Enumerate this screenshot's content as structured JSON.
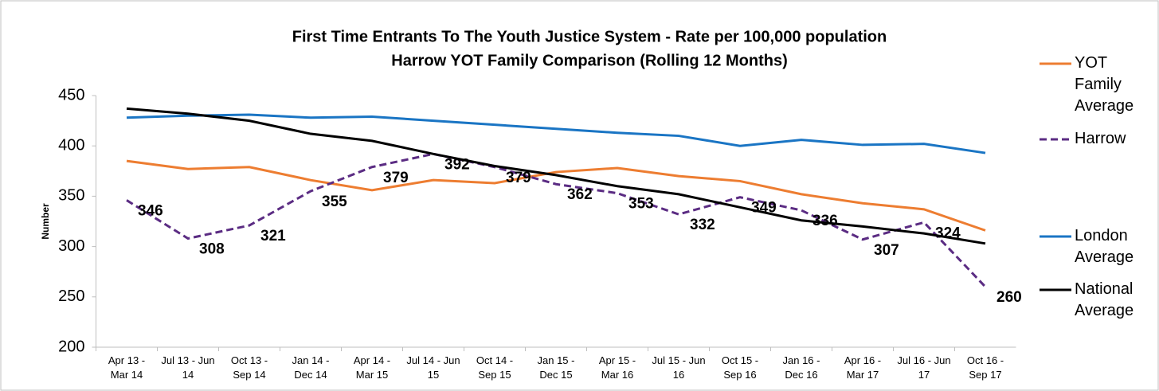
{
  "chart_data": {
    "type": "line",
    "title": "First Time Entrants To The Youth Justice System - Rate per 100,000 population",
    "subtitle": "Harrow YOT Family Comparison (Rolling 12 Months)",
    "y_label": "Number",
    "categories": [
      "Apr 13 - Mar 14",
      "Jul 13 - Jun 14",
      "Oct 13 - Sep 14",
      "Jan 14 - Dec 14",
      "Apr 14 - Mar 15",
      "Jul 14 - Jun 15",
      "Oct 14 - Sep 15",
      "Jan 15 - Dec 15",
      "Apr 15 - Mar 16",
      "Jul 15 - Jun 16",
      "Oct 15 - Sep 16",
      "Jan 16 - Dec 16",
      "Apr 16 - Mar 17",
      "Jul 16 - Jun 17",
      "Oct 16 - Sep 17"
    ],
    "series": [
      {
        "name": "YOT Family Average",
        "color": "#ed7d31",
        "dashed": false,
        "data_labels": false,
        "values": [
          385,
          377,
          379,
          366,
          356,
          366,
          363,
          374,
          378,
          370,
          365,
          352,
          343,
          337,
          316
        ]
      },
      {
        "name": "Harrow",
        "color": "#5b2c83",
        "dashed": true,
        "data_labels": true,
        "values": [
          346,
          308,
          321,
          355,
          379,
          392,
          379,
          362,
          353,
          332,
          349,
          336,
          307,
          324,
          260
        ]
      },
      {
        "name": "London Average",
        "color": "#1a75c4",
        "dashed": false,
        "data_labels": false,
        "values": [
          428,
          430,
          431,
          428,
          429,
          425,
          421,
          417,
          413,
          410,
          400,
          406,
          401,
          402,
          393
        ]
      },
      {
        "name": "National Average",
        "color": "#000000",
        "dashed": false,
        "data_labels": false,
        "values": [
          437,
          432,
          425,
          412,
          405,
          392,
          380,
          371,
          360,
          352,
          339,
          326,
          320,
          313,
          303
        ]
      }
    ],
    "ylim": [
      200,
      450
    ],
    "yticks": [
      200,
      250,
      300,
      350,
      400,
      450
    ],
    "grid": false,
    "legend": "right"
  }
}
